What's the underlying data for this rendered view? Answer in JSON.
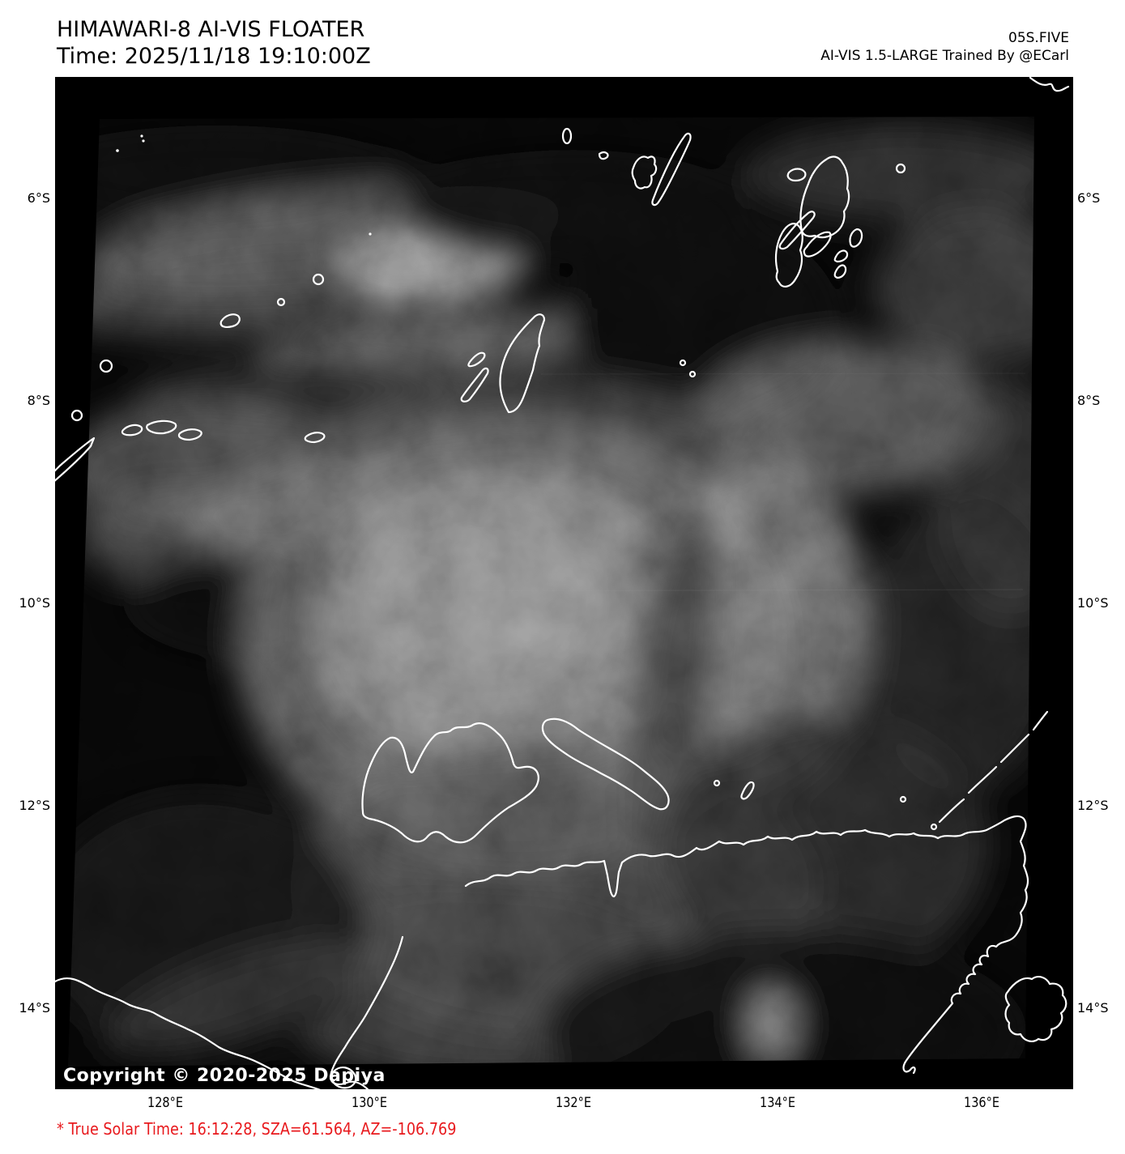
{
  "header": {
    "title": "HIMAWARI-8 AI-VIS FLOATER",
    "time_line": "Time: 2025/11/18 19:10:00Z",
    "storm_id": "05S.FIVE",
    "model_credit": "AI-VIS 1.5-LARGE Trained By @ECarl"
  },
  "map": {
    "copyright": "Copyright © 2020-2025 Dapiya",
    "lat_ticks": [
      "6°S",
      "8°S",
      "10°S",
      "12°S",
      "14°S"
    ],
    "lon_ticks": [
      "128°E",
      "130°E",
      "132°E",
      "134°E",
      "136°E"
    ]
  },
  "footer": {
    "solar_note": "* True Solar Time: 16:12:28, SZA=61.564, AZ=-106.769"
  },
  "colors": {
    "annotation_red": "#e8191d",
    "coastline": "#ffffff",
    "map_background": "#000000"
  }
}
